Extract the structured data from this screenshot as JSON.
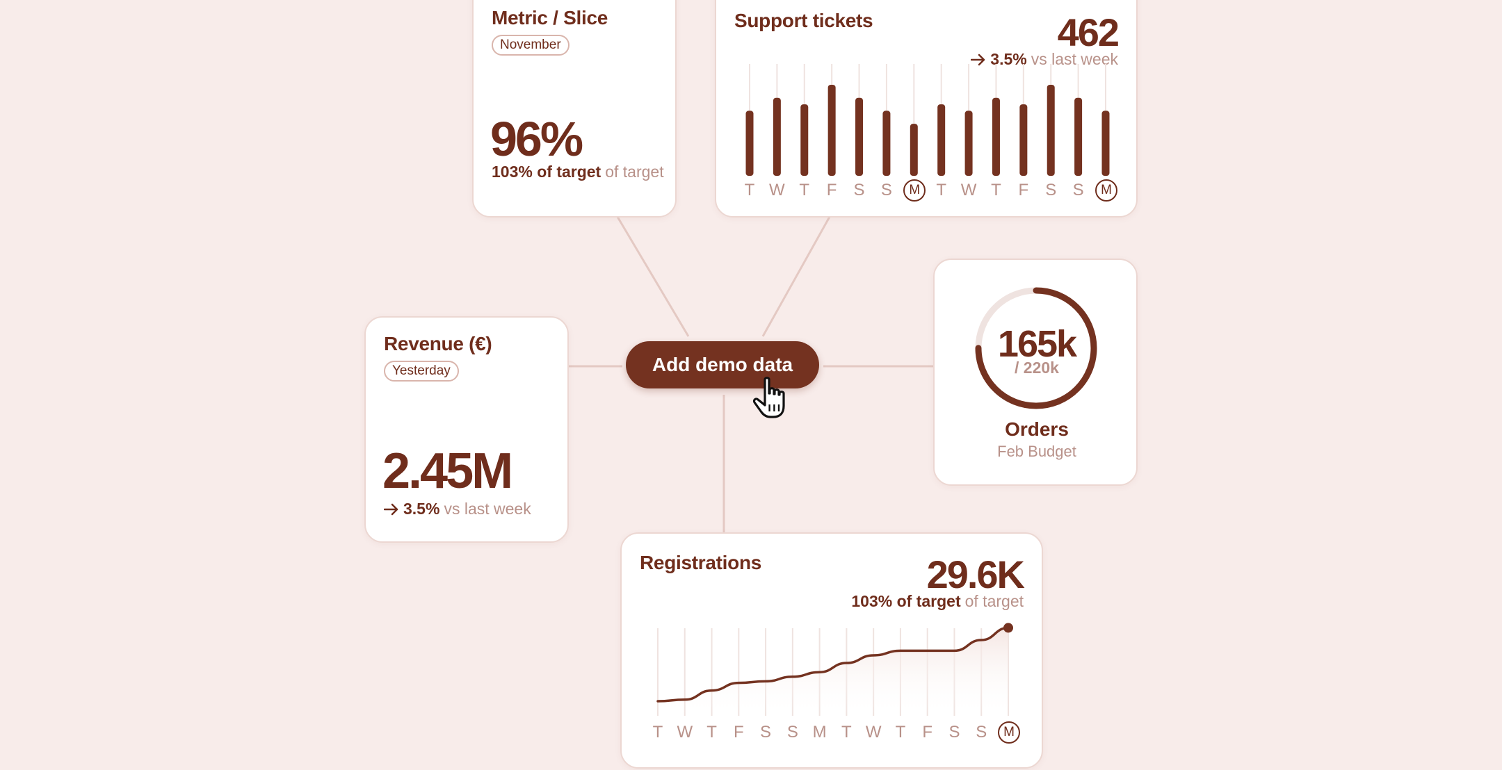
{
  "cta": {
    "label": "Add demo data"
  },
  "metric_card": {
    "title": "Metric / Slice",
    "period": "November",
    "value": "96%",
    "target_strong": "103% of target",
    "target_muted": "of target"
  },
  "support_card": {
    "title": "Support tickets",
    "value": "462",
    "change": "3.5%",
    "change_label": "vs last week"
  },
  "revenue_card": {
    "title": "Revenue (€)",
    "period": "Yesterday",
    "value": "2.45M",
    "change": "3.5%",
    "change_label": "vs last week"
  },
  "orders_card": {
    "value": "165k",
    "budget": "/ 220k",
    "title": "Orders",
    "subtitle": "Feb Budget",
    "progress": 0.75
  },
  "registrations_card": {
    "title": "Registrations",
    "value": "29.6K",
    "target_strong": "103% of target",
    "target_muted": "of target"
  },
  "chart_data": [
    {
      "type": "bar",
      "chart": "support-tickets",
      "categories": [
        "T",
        "W",
        "T",
        "F",
        "S",
        "S",
        "M",
        "T",
        "W",
        "T",
        "F",
        "S",
        "S",
        "M"
      ],
      "highlighted": [
        6,
        13
      ],
      "values": [
        5,
        6,
        5.5,
        7,
        6,
        5,
        4,
        5.5,
        5,
        6,
        5.5,
        7,
        6,
        5
      ],
      "ylim": [
        0,
        7
      ]
    },
    {
      "type": "line",
      "chart": "registrations",
      "categories": [
        "T",
        "W",
        "T",
        "F",
        "S",
        "S",
        "M",
        "T",
        "W",
        "T",
        "F",
        "S",
        "S",
        "M"
      ],
      "highlighted": [
        13
      ],
      "values": [
        5,
        6,
        12,
        17,
        18,
        21,
        24,
        30,
        35,
        38,
        38,
        38,
        45,
        53
      ],
      "ylim": [
        0,
        60
      ]
    }
  ],
  "colors": {
    "accent": "#743220",
    "background": "#f8ecea",
    "muted": "#b89189",
    "border": "#ecd7d2"
  },
  "icons": {
    "cursor": "hand-pointer-icon",
    "arrow": "arrow-right-icon"
  }
}
